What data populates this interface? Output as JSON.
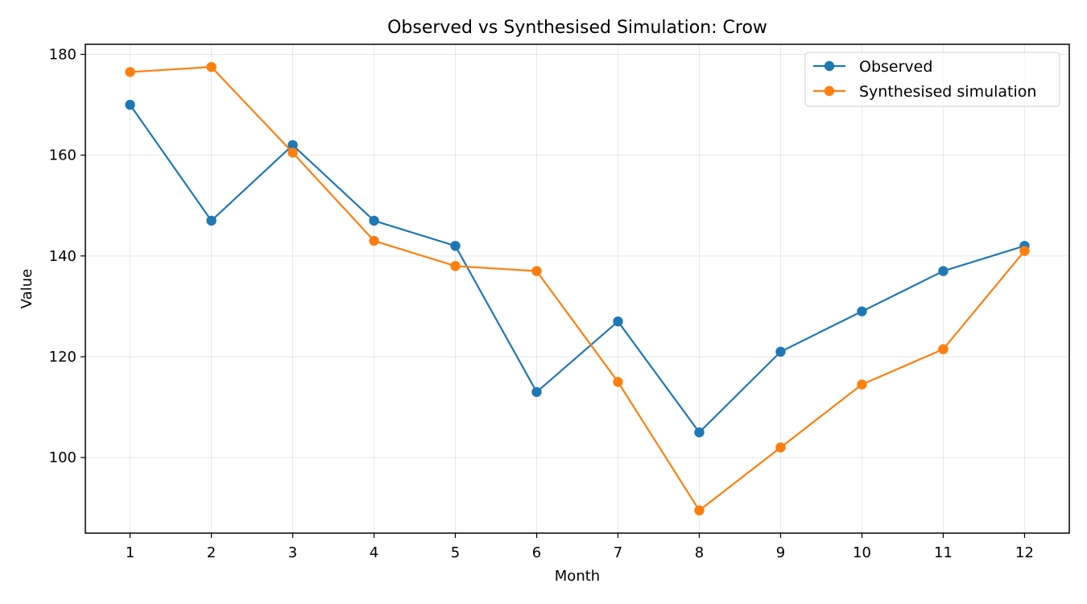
{
  "chart_data": {
    "type": "line",
    "title": "Observed vs Synthesised Simulation: Crow",
    "xlabel": "Month",
    "ylabel": "Value",
    "x": [
      1,
      2,
      3,
      4,
      5,
      6,
      7,
      8,
      9,
      10,
      11,
      12
    ],
    "xlim": [
      0.45,
      12.55
    ],
    "ylim": [
      85,
      182
    ],
    "yticks": [
      100,
      120,
      140,
      160,
      180
    ],
    "grid": true,
    "legend_position": "top-right",
    "series": [
      {
        "name": "Observed",
        "color": "#1f77b4",
        "marker": "circle",
        "values": [
          170,
          147,
          162,
          147,
          142,
          113,
          127,
          105,
          121,
          129,
          137,
          142
        ]
      },
      {
        "name": "Synthesised simulation",
        "color": "#ff7f0e",
        "marker": "circle",
        "values": [
          176.5,
          177.5,
          160.5,
          143,
          138,
          137,
          115,
          89.5,
          102,
          114.5,
          121.5,
          141
        ]
      }
    ]
  }
}
